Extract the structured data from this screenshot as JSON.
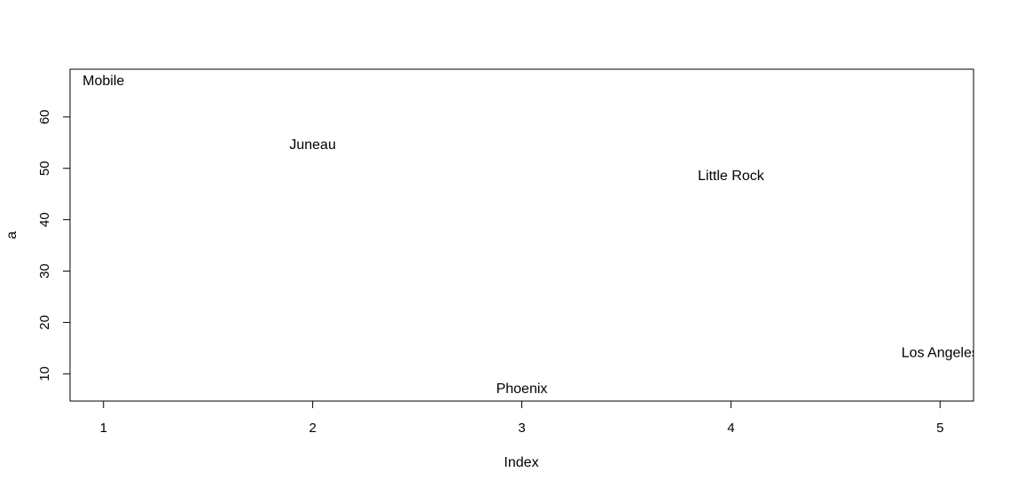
{
  "chart_data": {
    "type": "scatter",
    "title": "",
    "xlabel": "Index",
    "ylabel": "a",
    "xlim": [
      0.84,
      5.16
    ],
    "ylim": [
      4.7,
      69.3
    ],
    "x_ticks": [
      1,
      2,
      3,
      4,
      5
    ],
    "y_ticks": [
      10,
      20,
      30,
      40,
      50,
      60
    ],
    "grid": false,
    "legend": "none",
    "points": [
      {
        "x": 1,
        "y": 67,
        "label": "Mobile"
      },
      {
        "x": 2,
        "y": 54.5,
        "label": "Juneau"
      },
      {
        "x": 3,
        "y": 7,
        "label": "Phoenix"
      },
      {
        "x": 4,
        "y": 48.5,
        "label": "Little Rock"
      },
      {
        "x": 5,
        "y": 14,
        "label": "Los Angeles"
      }
    ]
  },
  "colors": {
    "text": "#000000",
    "axis": "#000000",
    "background": "#ffffff"
  }
}
